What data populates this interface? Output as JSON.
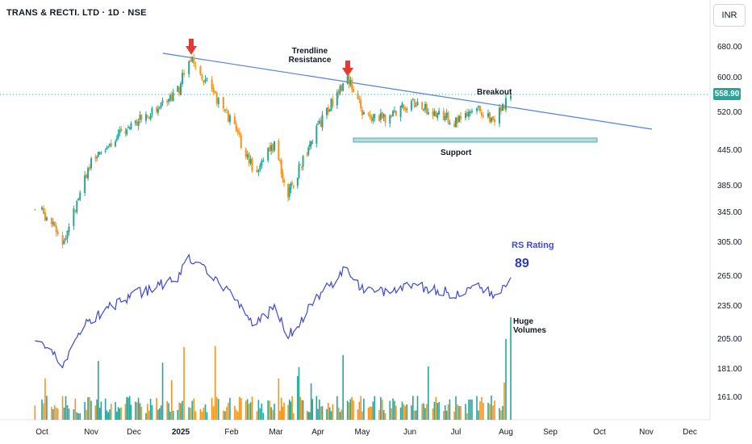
{
  "header": {
    "title": "TRANS & RECTI. LTD · 1D · NSE",
    "currency": "INR"
  },
  "price_tag": "558.90",
  "annotations": {
    "trendline_1": "Trendline",
    "trendline_2": "Resistance",
    "breakout": "Breakout",
    "support": "Support",
    "rs_rating_label": "RS Rating",
    "rs_rating_value": "89",
    "huge_volumes_1": "Huge",
    "huge_volumes_2": "Volumes"
  },
  "colors": {
    "up": "#26a69a",
    "down": "#f7931a",
    "rs_line": "#3b48d8",
    "trendline": "#4f7ff0",
    "support_fill": "#b2dfdb",
    "arrow": "#e53935"
  },
  "chart_data": {
    "type": "candlestick",
    "y_ticks": [
      "680.00",
      "600.00",
      "520.00",
      "445.00",
      "385.00",
      "345.00",
      "305.00",
      "265.00",
      "235.00",
      "205.00",
      "181.00",
      "161.00"
    ],
    "x_ticks": [
      "Oct",
      "Nov",
      "Dec",
      "2025",
      "Feb",
      "Mar",
      "Apr",
      "May",
      "Jun",
      "Jul",
      "Aug",
      "Sep",
      "Oct",
      "Nov",
      "Dec"
    ],
    "last_price": 558.9,
    "price_series": [
      [
        "2024-09-30",
        350
      ],
      [
        "2024-10-15",
        305
      ],
      [
        "2024-10-31",
        420
      ],
      [
        "2024-11-15",
        460
      ],
      [
        "2024-11-30",
        500
      ],
      [
        "2024-12-15",
        525
      ],
      [
        "2024-12-31",
        575
      ],
      [
        "2025-01-06",
        652
      ],
      [
        "2025-01-15",
        600
      ],
      [
        "2025-01-31",
        505
      ],
      [
        "2025-02-15",
        410
      ],
      [
        "2025-02-28",
        455
      ],
      [
        "2025-03-10",
        370
      ],
      [
        "2025-03-25",
        450
      ],
      [
        "2025-04-10",
        540
      ],
      [
        "2025-04-21",
        605
      ],
      [
        "2025-05-01",
        520
      ],
      [
        "2025-05-15",
        508
      ],
      [
        "2025-06-01",
        540
      ],
      [
        "2025-06-15",
        525
      ],
      [
        "2025-07-01",
        500
      ],
      [
        "2025-07-15",
        525
      ],
      [
        "2025-07-25",
        505
      ],
      [
        "2025-08-04",
        558.9
      ]
    ],
    "support_level": 478,
    "rs_rating": 89
  }
}
